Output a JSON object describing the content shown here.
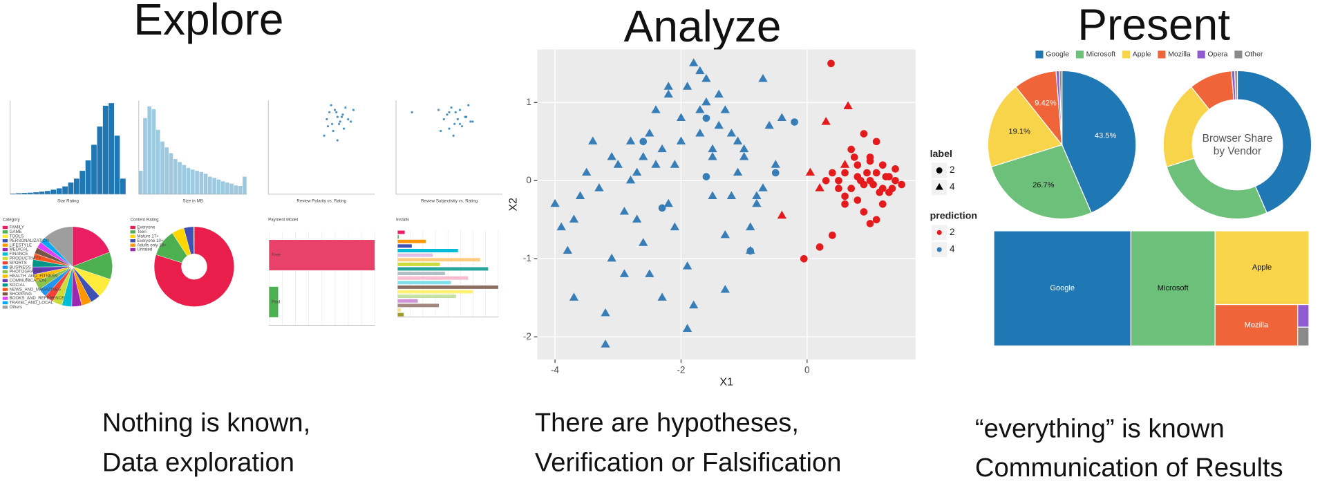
{
  "columns": [
    {
      "heading": "Explore",
      "caption": [
        "Nothing is known,",
        "Data exploration"
      ]
    },
    {
      "heading": "Analyze",
      "caption": [
        "There are hypotheses,",
        "Verification or Falsification"
      ]
    },
    {
      "heading": "Present",
      "caption": [
        "“everything” is known",
        "Communication of Results"
      ]
    }
  ],
  "chart_data": [
    {
      "type": "histogram",
      "xlabel": "Star Rating",
      "color": "#1f77b4",
      "ylim": [
        0,
        720
      ],
      "bins": [
        1,
        1.2,
        1.4,
        1.6,
        1.8,
        2,
        2.2,
        2.4,
        2.6,
        2.8,
        3,
        3.2,
        3.4,
        3.6,
        3.8,
        4,
        4.2,
        4.4,
        4.6,
        4.8,
        5
      ],
      "values": [
        5,
        8,
        10,
        12,
        15,
        20,
        25,
        35,
        45,
        60,
        90,
        120,
        180,
        260,
        380,
        520,
        680,
        700,
        450,
        120
      ]
    },
    {
      "type": "histogram",
      "xlabel": "Size in MB",
      "color": "#9ecae1",
      "ylim": [
        0,
        160
      ],
      "bins": [
        0,
        4,
        8,
        12,
        16,
        20,
        24,
        28,
        32,
        36,
        40,
        44,
        48,
        52,
        56,
        60,
        64,
        68,
        72,
        76,
        80,
        84,
        88,
        92,
        96,
        100
      ],
      "values": [
        40,
        130,
        150,
        145,
        110,
        90,
        80,
        70,
        60,
        55,
        50,
        45,
        42,
        40,
        38,
        35,
        30,
        28,
        25,
        22,
        20,
        18,
        15,
        14,
        30
      ]
    },
    {
      "type": "scatter",
      "xlabel": "Review Polarity vs. Rating",
      "color": "#1f77b4",
      "xlim": [
        -1,
        1
      ],
      "ylim": [
        1,
        5
      ],
      "x": [
        0.1,
        0.15,
        0.2,
        0.25,
        0.3,
        0.35,
        0.4,
        0.45,
        0.5,
        0.12,
        0.18,
        0.22,
        0.28,
        0.33,
        0.38,
        0.42,
        0.05,
        0.55,
        0.6,
        0.3
      ],
      "y": [
        4.2,
        4.5,
        4.0,
        4.6,
        4.3,
        4.1,
        4.4,
        4.7,
        4.2,
        3.9,
        4.8,
        3.7,
        4.5,
        4.0,
        4.3,
        3.8,
        3.5,
        4.1,
        4.6,
        3.3
      ]
    },
    {
      "type": "scatter",
      "xlabel": "Review Subjectivity vs. Rating",
      "color": "#1f77b4",
      "xlim": [
        0,
        1
      ],
      "ylim": [
        1,
        5
      ],
      "x": [
        0.45,
        0.5,
        0.55,
        0.6,
        0.65,
        0.7,
        0.48,
        0.52,
        0.58,
        0.62,
        0.68,
        0.42,
        0.56,
        0.6,
        0.66,
        0.5,
        0.54,
        0.72,
        0.4,
        0.15
      ],
      "y": [
        4.2,
        4.5,
        4.0,
        4.6,
        4.3,
        4.1,
        4.4,
        4.7,
        4.2,
        3.9,
        4.8,
        3.7,
        4.5,
        4.0,
        4.3,
        3.8,
        3.5,
        4.1,
        4.6,
        4.5
      ]
    },
    {
      "type": "pie",
      "title": "Category",
      "categories": [
        "FAMILY",
        "GAME",
        "TOOLS",
        "PERSONALIZATION",
        "LIFESTYLE",
        "MEDICAL",
        "FINANCE",
        "PRODUCTIVITY",
        "SPORTS",
        "BUSINESS",
        "PHOTOGRAPHY",
        "HEALTH_AND_FITNESS",
        "COMMUNICATION",
        "SOCIAL",
        "NEWS_AND_MAGAZINES",
        "SHOPPING",
        "BOOKS_AND_REFERENCE",
        "TRAVEL_AND_LOCAL",
        "Others"
      ],
      "values": [
        19,
        11,
        8,
        4,
        4,
        4,
        4,
        4,
        3.5,
        3.5,
        3.5,
        3,
        3,
        3,
        2.5,
        2.5,
        2.5,
        2.5,
        12
      ],
      "colors": [
        "#e91e63",
        "#4caf50",
        "#ffeb3b",
        "#3f51b5",
        "#ff9800",
        "#9c27b0",
        "#00bcd4",
        "#cddc39",
        "#f44336",
        "#2196f3",
        "#8bc34a",
        "#ffc107",
        "#673ab7",
        "#009688",
        "#ff5722",
        "#795548",
        "#e040fb",
        "#03a9f4",
        "#9e9e9e"
      ]
    },
    {
      "type": "donut",
      "title": "Content Rating",
      "categories": [
        "Everyone",
        "Teen",
        "Mature 17+",
        "Everyone 10+",
        "Adults only 18+",
        "Unrated"
      ],
      "values": [
        80,
        11,
        5,
        4,
        0.1,
        0.1
      ],
      "colors": [
        "#e91e4a",
        "#4caf50",
        "#ffd600",
        "#3f51b5",
        "#ff9800",
        "#9c27b0"
      ]
    },
    {
      "type": "bar",
      "title": "Payment Model",
      "categories": [
        "Free",
        "Paid"
      ],
      "values": [
        7000,
        600
      ],
      "xlim": [
        0,
        7000
      ],
      "colors": [
        "#e8416a",
        "#4caf50"
      ]
    },
    {
      "type": "bar",
      "title": "Installs",
      "xlim": [
        0,
        1000
      ],
      "values": [
        70,
        10,
        280,
        140,
        600,
        350,
        820,
        420,
        900,
        470,
        700,
        530,
        1000,
        750,
        580,
        200,
        410,
        30,
        60
      ],
      "colors": [
        "#e91e63",
        "#4caf50",
        "#ff9800",
        "#3f51b5",
        "#00bcd4",
        "#e1bee7",
        "#ffcc80",
        "#cddc39",
        "#26a69a",
        "#b0bec5",
        "#f8bbd0",
        "#80deea",
        "#8d6e63",
        "#fff176",
        "#c5e1a5",
        "#ce93d8",
        "#a1887f",
        "#ffe082",
        "#9e9d24"
      ]
    },
    {
      "type": "scatter",
      "xlabel": "X1",
      "ylabel": "X2",
      "xlim": [
        -4.28,
        1.72
      ],
      "ylim": [
        -2.29,
        1.68
      ],
      "xticks": [
        -4,
        -2,
        0
      ],
      "yticks": [
        -2,
        -1,
        0,
        1
      ],
      "grid": true,
      "legend": [
        {
          "title": "label",
          "entries": [
            {
              "name": "2",
              "shape": "circle"
            },
            {
              "name": "4",
              "shape": "triangle"
            }
          ]
        },
        {
          "title": "prediction",
          "entries": [
            {
              "name": "2",
              "color": "#e41a1c"
            },
            {
              "name": "4",
              "color": "#377eb8"
            }
          ]
        }
      ],
      "series": [
        {
          "shape": "triangle",
          "color": "#377eb8",
          "x": [
            -4,
            -3.9,
            -3.7,
            -3.5,
            -3.3,
            -3.2,
            -3.1,
            -3,
            -2.9,
            -2.8,
            -2.7,
            -2.6,
            -2.5,
            -2.4,
            -2.3,
            -2.2,
            -2.1,
            -2,
            -1.9,
            -1.8,
            -1.7,
            -1.6,
            -1.5,
            -1.4,
            -1.3,
            -1.2,
            -1.1,
            -1,
            -0.9,
            -0.8,
            -0.7,
            -0.6,
            -0.5,
            -3.8,
            -3.4,
            -2.9,
            -2.6,
            -2.3,
            -2.1,
            -1.9,
            -1.7,
            -1.5,
            -1.3,
            -1.1,
            -0.9,
            -0.7,
            -2.4,
            -2,
            -1.6,
            -1.2,
            -0.8,
            -3.6,
            -2.8,
            -2.2,
            -1.8,
            -1.4,
            -1,
            -3.2,
            -2.5,
            -1.7,
            -1.3,
            -2.7,
            -1.9,
            -1.5,
            -2.2,
            -0.4,
            -3.7,
            -3.1
          ],
          "y": [
            -0.3,
            -0.6,
            -0.5,
            0.1,
            -0.1,
            -2.1,
            0.3,
            0.2,
            -1.2,
            0.5,
            0.1,
            0.3,
            0.6,
            0.9,
            0.4,
            1.1,
            0.2,
            0.8,
            1.2,
            1.5,
            0.6,
            1.3,
            0.4,
            1.1,
            0.9,
            -0.2,
            0.5,
            0.3,
            -0.6,
            -0.3,
            1.3,
            0.7,
            0.2,
            -0.9,
            0.5,
            -0.4,
            -0.8,
            -1.5,
            -0.6,
            -1.1,
            1.4,
            -0.2,
            -1.4,
            0.1,
            -0.9,
            -0.1,
            0.2,
            0.5,
            1.0,
            0.6,
            -0.2,
            -0.2,
            0.0,
            -0.3,
            -1.6,
            0.7,
            0.4,
            -1.7,
            -1.2,
            0.9,
            -0.7,
            -0.5,
            -1.9,
            0.3,
            1.2,
            0.8,
            -1.5,
            -1.0
          ]
        },
        {
          "shape": "circle",
          "color": "#e41a1c",
          "x": [
            0.5,
            0.6,
            0.7,
            0.8,
            0.9,
            1.0,
            1.1,
            1.2,
            1.3,
            1.4,
            1.5,
            0.6,
            0.8,
            1.0,
            1.2,
            1.4,
            0.7,
            0.9,
            1.1,
            1.3,
            0.5,
            0.8,
            1.0,
            1.2,
            0.9,
            1.1,
            0.4,
            0.6,
            1.0,
            0.3,
            0.85,
            1.05,
            1.25,
            0.95,
            1.15,
            0.75,
            1.35,
            0.4,
            0.2,
            -0.05,
            0.38
          ],
          "y": [
            0.0,
            0.1,
            -0.1,
            0.05,
            -0.05,
            0.0,
            0.1,
            -0.1,
            0.05,
            0.0,
            -0.05,
            -0.2,
            0.2,
            0.3,
            -0.3,
            0.15,
            0.4,
            -0.4,
            0.5,
            -0.15,
            -0.1,
            -0.25,
            0.25,
            0.2,
            0.6,
            -0.5,
            0.1,
            -0.3,
            -0.55,
            0.0,
            0.0,
            -0.05,
            0.05,
            0.1,
            -0.15,
            0.3,
            -0.1,
            -0.7,
            -0.85,
            -1.0,
            1.5
          ]
        },
        {
          "shape": "triangle",
          "color": "#e41a1c",
          "x": [
            0.3,
            0.65,
            -0.4,
            0.05,
            0.2,
            0.6
          ],
          "y": [
            0.75,
            0.95,
            -0.45,
            0.1,
            -0.1,
            0.2
          ]
        },
        {
          "shape": "circle",
          "color": "#377eb8",
          "x": [
            -2.6,
            -1.6,
            -1.6,
            -0.2,
            -0.5,
            -2.3,
            -0.9
          ],
          "y": [
            0.5,
            0.8,
            0.05,
            0.75,
            0.1,
            -0.35,
            -0.9
          ]
        }
      ]
    },
    {
      "type": "pie",
      "legend": true,
      "categories": [
        "Google",
        "Microsoft",
        "Apple",
        "Mozilla",
        "Opera",
        "Other"
      ],
      "values": [
        43.5,
        26.7,
        19.1,
        9.42,
        0.7,
        0.58
      ],
      "value_labels": [
        "43.5%",
        "26.7%",
        "19.1%",
        "9.42%",
        null,
        null
      ],
      "colors": [
        "#1f77b4",
        "#6cc07a",
        "#f7d44a",
        "#ef6439",
        "#8e5bd1",
        "#8a8a8a"
      ]
    },
    {
      "type": "donut",
      "title": [
        "Browser Share",
        "by Vendor"
      ],
      "values": [
        43.5,
        26.7,
        19.1,
        9.42,
        0.7,
        0.58
      ],
      "colors": [
        "#1f77b4",
        "#6cc07a",
        "#f7d44a",
        "#ef6439",
        "#8e5bd1",
        "#8a8a8a"
      ]
    },
    {
      "type": "treemap",
      "categories": [
        "Google",
        "Microsoft",
        "Apple",
        "Mozilla",
        null,
        null
      ],
      "values": [
        43.5,
        26.7,
        19.1,
        9.42,
        0.7,
        0.58
      ],
      "colors": [
        "#1f77b4",
        "#6cc07a",
        "#f7d44a",
        "#ef6439",
        "#8e5bd1",
        "#8a8a8a"
      ]
    }
  ]
}
